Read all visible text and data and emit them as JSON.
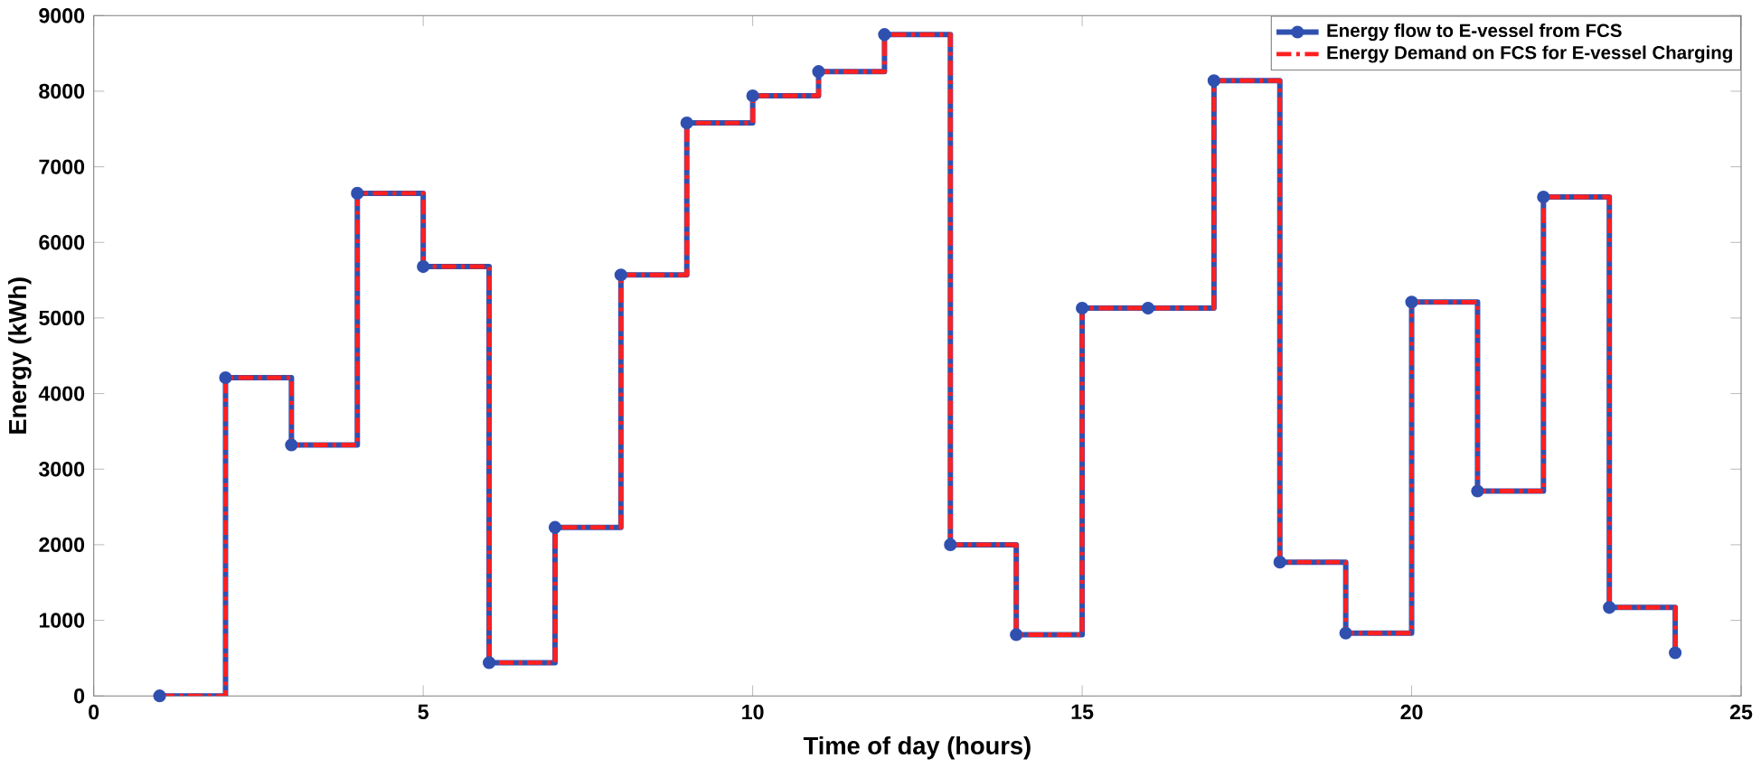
{
  "chart_data": {
    "type": "step",
    "xlabel": "Time of day (hours)",
    "ylabel": "Energy (kWh)",
    "x": [
      1,
      2,
      3,
      4,
      5,
      6,
      7,
      8,
      9,
      10,
      11,
      12,
      13,
      14,
      15,
      16,
      17,
      18,
      19,
      20,
      21,
      22,
      23,
      24
    ],
    "series": [
      {
        "name": "Energy flow to E-vessel from FCS",
        "color": "#3050b0",
        "marker": "circle",
        "line_style": "solid",
        "values": [
          0,
          4210,
          3320,
          6650,
          5680,
          440,
          2230,
          5570,
          7580,
          7940,
          8260,
          8750,
          2000,
          810,
          5130,
          5130,
          8140,
          1770,
          830,
          5210,
          2710,
          6600,
          1170,
          570
        ]
      },
      {
        "name": "Energy Demand on FCS for E-vessel Charging",
        "color": "#ff2020",
        "marker": "none",
        "line_style": "dashed",
        "values": [
          0,
          4210,
          3320,
          6650,
          5680,
          440,
          2230,
          5570,
          7580,
          7940,
          8260,
          8750,
          2000,
          810,
          5130,
          5130,
          8140,
          1770,
          830,
          5210,
          2710,
          6600,
          1170,
          570
        ]
      }
    ],
    "xlim": [
      0,
      25
    ],
    "ylim": [
      0,
      9000
    ],
    "xticks": [
      0,
      5,
      10,
      15,
      20,
      25
    ],
    "yticks": [
      0,
      1000,
      2000,
      3000,
      4000,
      5000,
      6000,
      7000,
      8000,
      9000
    ],
    "grid": false,
    "legend": "top right"
  }
}
